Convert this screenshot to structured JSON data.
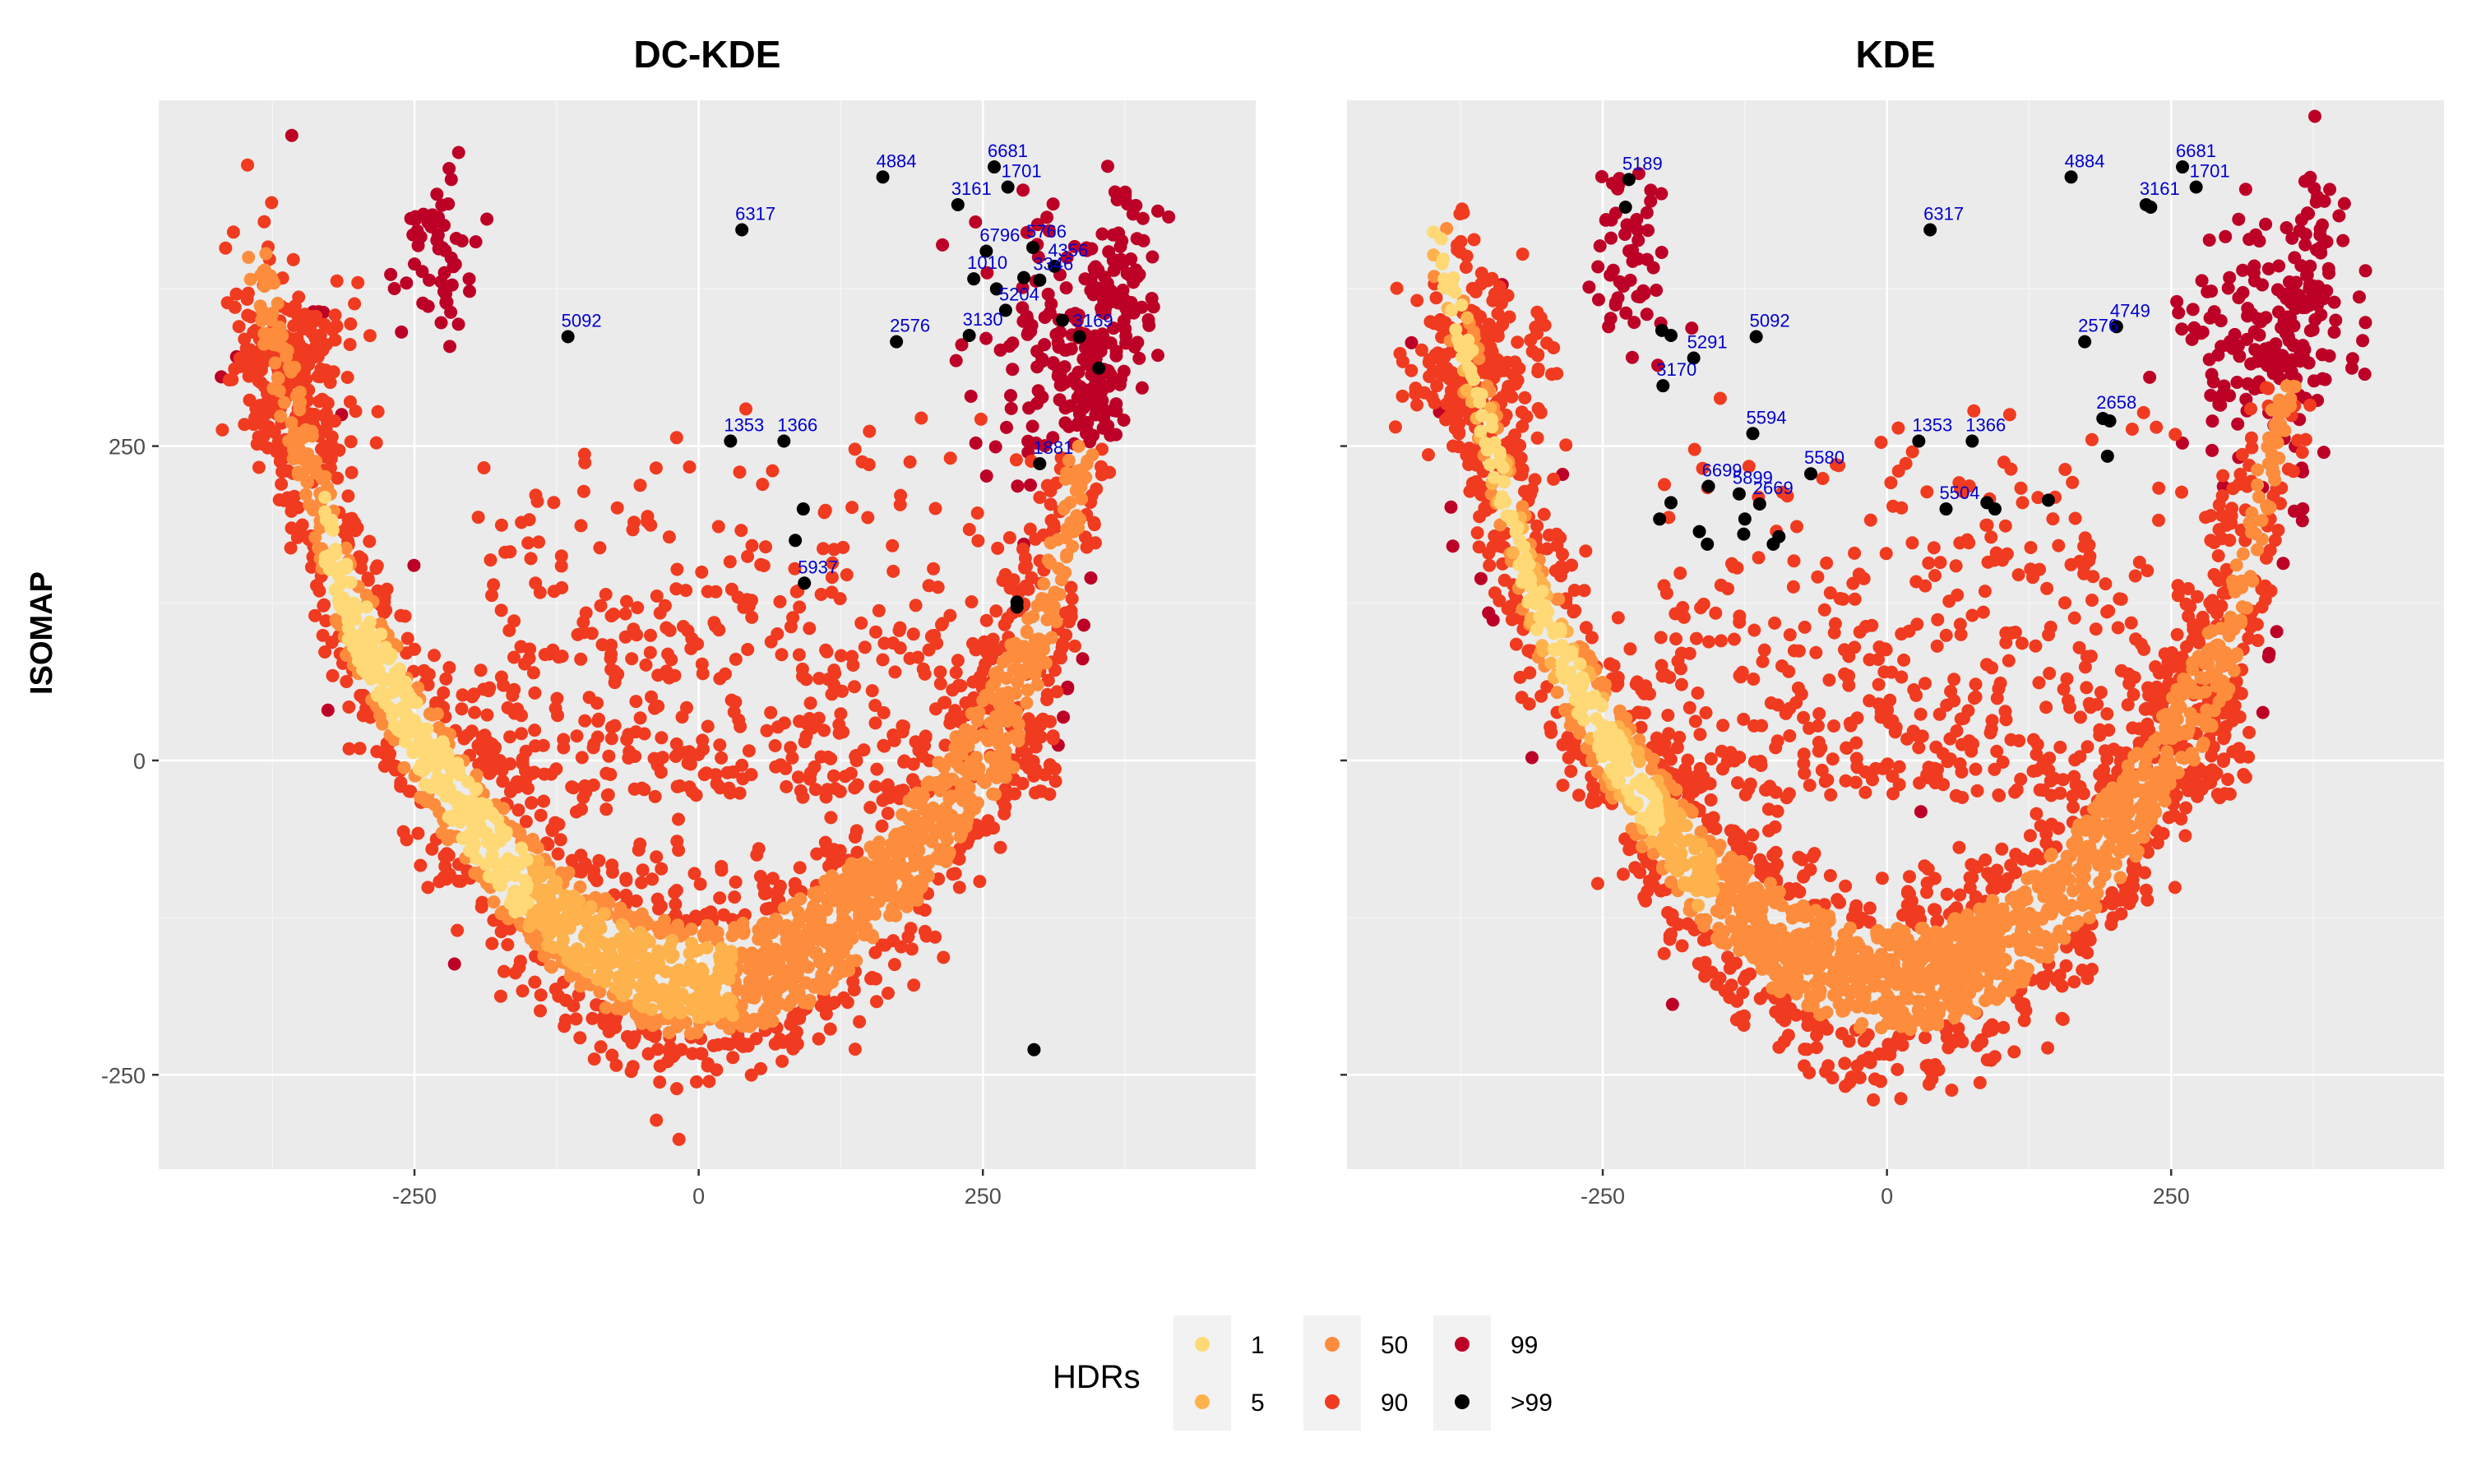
{
  "chart_data": {
    "type": "scatter",
    "y_axis_title": "ISOMAP",
    "x_ticks": [
      -250,
      0,
      250
    ],
    "y_ticks": [
      -250,
      0,
      250
    ],
    "xlim": [
      -475,
      490
    ],
    "ylim": [
      -325,
      525
    ],
    "legend": {
      "title": "HDRs",
      "position": "bottom",
      "entries": [
        {
          "label": "1",
          "color": "#FED976"
        },
        {
          "label": "5",
          "color": "#FEB24C"
        },
        {
          "label": "50",
          "color": "#FD8D3C"
        },
        {
          "label": "90",
          "color": "#F03B20"
        },
        {
          "label": "99",
          "color": "#BD0026"
        },
        {
          "label": ">99",
          "color": "#000000"
        }
      ]
    },
    "panels": [
      {
        "title": "DC-KDE",
        "labeled_points": [
          {
            "label": "4884",
            "x": 162,
            "y": 464
          },
          {
            "label": "6681",
            "x": 260,
            "y": 472
          },
          {
            "label": "1701",
            "x": 272,
            "y": 456
          },
          {
            "label": "3161",
            "x": 228,
            "y": 442
          },
          {
            "label": "6317",
            "x": 38,
            "y": 422
          },
          {
            "label": "6796",
            "x": 253,
            "y": 405
          },
          {
            "label": "5766",
            "x": 294,
            "y": 408
          },
          {
            "label": "4356",
            "x": 313,
            "y": 393
          },
          {
            "label": "1010",
            "x": 242,
            "y": 383
          },
          {
            "label": "3346",
            "x": 300,
            "y": 382
          },
          {
            "label": "5092",
            "x": -115,
            "y": 337
          },
          {
            "label": "5204",
            "x": 270,
            "y": 358
          },
          {
            "label": "2576",
            "x": 174,
            "y": 333
          },
          {
            "label": "3130",
            "x": 238,
            "y": 338
          },
          {
            "label": "3169",
            "x": 335,
            "y": 337
          },
          {
            "label": "1353",
            "x": 28,
            "y": 254
          },
          {
            "label": "1366",
            "x": 75,
            "y": 254
          },
          {
            "label": "1881",
            "x": 300,
            "y": 236
          },
          {
            "label": "5937",
            "x": 93,
            "y": 141
          }
        ],
        "unlabeled_extreme_points": [
          {
            "x": 92,
            "y": 200
          },
          {
            "x": 85,
            "y": 175
          },
          {
            "x": 280,
            "y": 122
          },
          {
            "x": 280,
            "y": 126
          },
          {
            "x": 295,
            "y": -230
          },
          {
            "x": 352,
            "y": 312
          },
          {
            "x": 320,
            "y": 350
          },
          {
            "x": 286,
            "y": 384
          },
          {
            "x": 262,
            "y": 375
          }
        ]
      },
      {
        "title": "KDE",
        "labeled_points": [
          {
            "label": "5189",
            "x": -227,
            "y": 462
          },
          {
            "label": "4884",
            "x": 162,
            "y": 464
          },
          {
            "label": "6681",
            "x": 260,
            "y": 472
          },
          {
            "label": "1701",
            "x": 272,
            "y": 456
          },
          {
            "label": "3161",
            "x": 228,
            "y": 442
          },
          {
            "label": "6317",
            "x": 38,
            "y": 422
          },
          {
            "label": "5092",
            "x": -115,
            "y": 337
          },
          {
            "label": "4749",
            "x": 202,
            "y": 345
          },
          {
            "label": "2576",
            "x": 174,
            "y": 333
          },
          {
            "label": "5291",
            "x": -170,
            "y": 320
          },
          {
            "label": "3170",
            "x": -197,
            "y": 298
          },
          {
            "label": "2658",
            "x": 190,
            "y": 272
          },
          {
            "label": "5594",
            "x": -118,
            "y": 260
          },
          {
            "label": "1353",
            "x": 28,
            "y": 254
          },
          {
            "label": "1366",
            "x": 75,
            "y": 254
          },
          {
            "label": "5580",
            "x": -67,
            "y": 228
          },
          {
            "label": "6699",
            "x": -157,
            "y": 218
          },
          {
            "label": "5899",
            "x": -130,
            "y": 212
          },
          {
            "label": "2669",
            "x": -112,
            "y": 204
          },
          {
            "label": "5504",
            "x": 52,
            "y": 200
          }
        ],
        "unlabeled_extreme_points": [
          {
            "x": -230,
            "y": 440
          },
          {
            "x": -198,
            "y": 342
          },
          {
            "x": -190,
            "y": 338
          },
          {
            "x": -190,
            "y": 205
          },
          {
            "x": -200,
            "y": 192
          },
          {
            "x": -165,
            "y": 182
          },
          {
            "x": -158,
            "y": 172
          },
          {
            "x": -125,
            "y": 192
          },
          {
            "x": -100,
            "y": 172
          },
          {
            "x": -95,
            "y": 178
          },
          {
            "x": -126,
            "y": 180
          },
          {
            "x": 88,
            "y": 205
          },
          {
            "x": 95,
            "y": 200
          },
          {
            "x": 142,
            "y": 207
          },
          {
            "x": 194,
            "y": 242
          },
          {
            "x": 196,
            "y": 270
          },
          {
            "x": 232,
            "y": 440
          }
        ]
      }
    ]
  }
}
